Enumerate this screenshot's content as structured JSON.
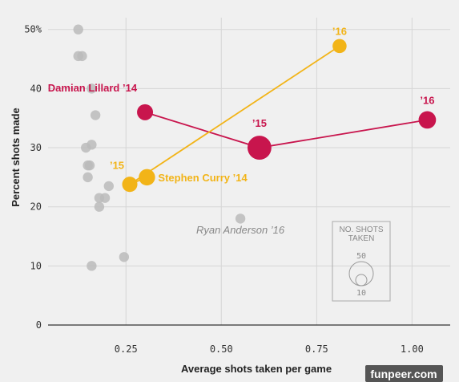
{
  "chart_data": {
    "type": "scatter",
    "xlabel": "Average shots taken per game",
    "ylabel": "Percent shots made",
    "xlim": [
      0.05,
      1.1
    ],
    "ylim": [
      0,
      52
    ],
    "x_ticks": [
      {
        "value": 0.25,
        "label": "0.25"
      },
      {
        "value": 0.5,
        "label": "0.50"
      },
      {
        "value": 0.75,
        "label": "0.75"
      },
      {
        "value": 1.0,
        "label": "1.00"
      }
    ],
    "y_ticks": [
      {
        "value": 0,
        "label": "0"
      },
      {
        "value": 10,
        "label": "10"
      },
      {
        "value": 20,
        "label": "20"
      },
      {
        "value": 30,
        "label": "30"
      },
      {
        "value": 40,
        "label": "40"
      },
      {
        "value": 50,
        "label": "50%"
      }
    ],
    "grid": true,
    "colors": {
      "lillard": "#c8154d",
      "curry": "#f2b418",
      "other": "#bbbbbb"
    },
    "background_points": [
      {
        "x": 0.125,
        "y": 50
      },
      {
        "x": 0.125,
        "y": 45.5
      },
      {
        "x": 0.135,
        "y": 45.5
      },
      {
        "x": 0.16,
        "y": 40
      },
      {
        "x": 0.17,
        "y": 35.5
      },
      {
        "x": 0.16,
        "y": 30.5
      },
      {
        "x": 0.145,
        "y": 30
      },
      {
        "x": 0.155,
        "y": 27
      },
      {
        "x": 0.15,
        "y": 27
      },
      {
        "x": 0.15,
        "y": 25
      },
      {
        "x": 0.205,
        "y": 23.5
      },
      {
        "x": 0.18,
        "y": 21.5
      },
      {
        "x": 0.195,
        "y": 21.5
      },
      {
        "x": 0.18,
        "y": 20
      },
      {
        "x": 0.245,
        "y": 11.5
      },
      {
        "x": 0.16,
        "y": 10
      },
      {
        "x": 0.55,
        "y": 18
      }
    ],
    "series": [
      {
        "name": "Damian Lillard",
        "color_key": "lillard",
        "points": [
          {
            "x": 0.3,
            "y": 36,
            "shots": 22,
            "label": "Damian Lillard ’14"
          },
          {
            "x": 0.6,
            "y": 30,
            "shots": 49,
            "label": "’15"
          },
          {
            "x": 1.04,
            "y": 34.7,
            "shots": 26,
            "label": "’16"
          }
        ]
      },
      {
        "name": "Stephen Curry",
        "color_key": "curry",
        "points": [
          {
            "x": 0.305,
            "y": 25,
            "shots": 23,
            "label": "Stephen Curry ’14"
          },
          {
            "x": 0.26,
            "y": 23.8,
            "shots": 20,
            "label": "’15"
          },
          {
            "x": 0.81,
            "y": 47.2,
            "shots": 17,
            "label": "’16"
          }
        ]
      }
    ],
    "annotations": [
      {
        "text": "Ryan Anderson ’16",
        "x": 0.55,
        "y": 15.5
      }
    ],
    "size_legend": {
      "title_line1": "NO. SHOTS",
      "title_line2": "TAKEN",
      "big_value": "50",
      "small_value": "10"
    }
  },
  "watermark": "funpeer.com"
}
